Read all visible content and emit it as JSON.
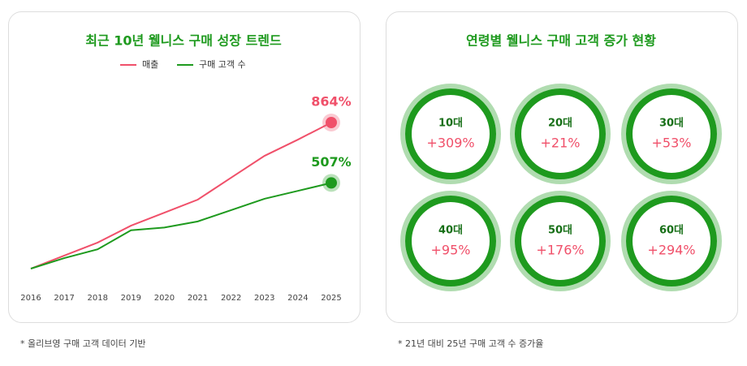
{
  "chart_data": [
    {
      "type": "line",
      "title": "최근 10년 웰니스 구매 성장 트렌드",
      "x": [
        "2016",
        "2017",
        "2018",
        "2019",
        "2020",
        "2021",
        "2022",
        "2023",
        "2024",
        "2025"
      ],
      "ylim": [
        0,
        864
      ],
      "series": [
        {
          "name": "매출",
          "color": "#f0506a",
          "end_label": "864%",
          "values": [
            0,
            77,
            154,
            254,
            331,
            408,
            538,
            667,
            763,
            864
          ]
        },
        {
          "name": "구매 고객 수",
          "color": "#1e9a1e",
          "end_label": "507%",
          "values": [
            0,
            62,
            114,
            227,
            243,
            279,
            346,
            413,
            460,
            507
          ]
        }
      ]
    },
    {
      "type": "circle-grid",
      "title": "연령별 웰니스 구매 고객 증가 현황",
      "categories": [
        "10대",
        "20대",
        "30대",
        "40대",
        "50대",
        "60대"
      ],
      "values": [
        309,
        21,
        53,
        95,
        176,
        294
      ],
      "value_labels": [
        "+309%",
        "+21%",
        "+53%",
        "+95%",
        "+176%",
        "+294%"
      ],
      "color": "#1e9a1e",
      "label_color": "#f0506a"
    }
  ],
  "footnotes": [
    "* 올리브영 구매 고객 데이터 기반",
    "* 21년 대비 25년 구매 고객 수 증가율"
  ]
}
